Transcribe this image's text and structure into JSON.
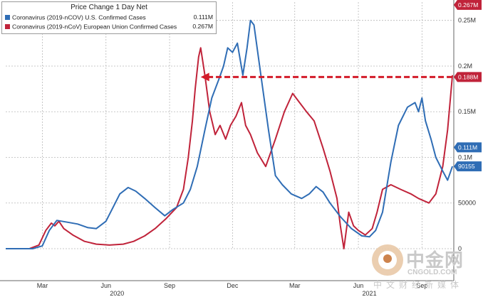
{
  "chart_data": {
    "type": "line",
    "title": "Price Change 1 Day Net",
    "x_ticks": [
      {
        "x": "2020-03-15",
        "label": "Mar"
      },
      {
        "x": "2020-06-15",
        "label": "Jun"
      },
      {
        "x": "2020-09-15",
        "label": "Sep"
      },
      {
        "x": "2020-12-15",
        "label": "Dec"
      },
      {
        "x": "2021-03-15",
        "label": "Mar"
      },
      {
        "x": "2021-06-15",
        "label": "Jun"
      },
      {
        "x": "2021-09-15",
        "label": "Sep"
      }
    ],
    "year_labels": [
      {
        "x": "2020-07-01",
        "label": "2020"
      },
      {
        "x": "2021-07-01",
        "label": "2021"
      }
    ],
    "y_ticks": [
      {
        "y": 0,
        "label": "0"
      },
      {
        "y": 50000,
        "label": "50000"
      },
      {
        "y": 100000,
        "label": "0.1M"
      },
      {
        "y": 150000,
        "label": "0.15M"
      },
      {
        "y": 200000,
        "label": "0.2M"
      },
      {
        "y": 250000,
        "label": "0.25M"
      }
    ],
    "xlim": [
      "2020-01-22",
      "2021-10-31"
    ],
    "ylim": [
      0,
      270000
    ],
    "grid": true,
    "legend_position": "top-left",
    "series": [
      {
        "name": "Coronavirus (2019-nCOV) U.S. Confirmed Cases",
        "color": "#2f6db5",
        "last_value_label": "0.111M",
        "points": [
          [
            "2020-01-22",
            0
          ],
          [
            "2020-03-01",
            0
          ],
          [
            "2020-03-15",
            3000
          ],
          [
            "2020-03-25",
            20000
          ],
          [
            "2020-04-05",
            31000
          ],
          [
            "2020-04-20",
            29000
          ],
          [
            "2020-05-05",
            27000
          ],
          [
            "2020-05-20",
            23000
          ],
          [
            "2020-06-01",
            22000
          ],
          [
            "2020-06-15",
            30000
          ],
          [
            "2020-06-25",
            45000
          ],
          [
            "2020-07-05",
            60000
          ],
          [
            "2020-07-17",
            67000
          ],
          [
            "2020-07-28",
            63000
          ],
          [
            "2020-08-10",
            55000
          ],
          [
            "2020-08-25",
            45000
          ],
          [
            "2020-09-08",
            36000
          ],
          [
            "2020-09-20",
            43000
          ],
          [
            "2020-10-05",
            50000
          ],
          [
            "2020-10-15",
            65000
          ],
          [
            "2020-10-25",
            90000
          ],
          [
            "2020-11-05",
            130000
          ],
          [
            "2020-11-15",
            165000
          ],
          [
            "2020-11-25",
            185000
          ],
          [
            "2020-12-02",
            200000
          ],
          [
            "2020-12-08",
            220000
          ],
          [
            "2020-12-15",
            215000
          ],
          [
            "2020-12-22",
            225000
          ],
          [
            "2020-12-30",
            190000
          ],
          [
            "2021-01-05",
            220000
          ],
          [
            "2021-01-10",
            250000
          ],
          [
            "2021-01-15",
            245000
          ],
          [
            "2021-01-25",
            190000
          ],
          [
            "2021-02-05",
            130000
          ],
          [
            "2021-02-15",
            80000
          ],
          [
            "2021-02-25",
            70000
          ],
          [
            "2021-03-10",
            60000
          ],
          [
            "2021-03-25",
            55000
          ],
          [
            "2021-04-05",
            60000
          ],
          [
            "2021-04-15",
            68000
          ],
          [
            "2021-04-25",
            62000
          ],
          [
            "2021-05-05",
            50000
          ],
          [
            "2021-05-20",
            35000
          ],
          [
            "2021-06-05",
            22000
          ],
          [
            "2021-06-20",
            14000
          ],
          [
            "2021-07-01",
            13000
          ],
          [
            "2021-07-10",
            20000
          ],
          [
            "2021-07-20",
            40000
          ],
          [
            "2021-08-01",
            95000
          ],
          [
            "2021-08-12",
            135000
          ],
          [
            "2021-08-25",
            155000
          ],
          [
            "2021-09-05",
            160000
          ],
          [
            "2021-09-10",
            150000
          ],
          [
            "2021-09-15",
            165000
          ],
          [
            "2021-09-20",
            140000
          ],
          [
            "2021-09-28",
            120000
          ],
          [
            "2021-10-05",
            100000
          ],
          [
            "2021-10-15",
            85000
          ],
          [
            "2021-10-22",
            75000
          ],
          [
            "2021-10-29",
            90155
          ]
        ]
      },
      {
        "name": "Coronavirus (2019-nCoV) European Union Confirmed Cases",
        "color": "#c0233a",
        "last_value_label": "0.267M",
        "points": [
          [
            "2020-01-22",
            0
          ],
          [
            "2020-02-25",
            0
          ],
          [
            "2020-03-10",
            4000
          ],
          [
            "2020-03-20",
            20000
          ],
          [
            "2020-03-28",
            28000
          ],
          [
            "2020-04-02",
            25000
          ],
          [
            "2020-04-08",
            30000
          ],
          [
            "2020-04-15",
            22000
          ],
          [
            "2020-04-28",
            15000
          ],
          [
            "2020-05-15",
            8000
          ],
          [
            "2020-06-01",
            5000
          ],
          [
            "2020-06-20",
            4000
          ],
          [
            "2020-07-10",
            5000
          ],
          [
            "2020-07-25",
            8000
          ],
          [
            "2020-08-10",
            14000
          ],
          [
            "2020-08-25",
            22000
          ],
          [
            "2020-09-10",
            33000
          ],
          [
            "2020-09-25",
            45000
          ],
          [
            "2020-10-05",
            65000
          ],
          [
            "2020-10-12",
            100000
          ],
          [
            "2020-10-18",
            140000
          ],
          [
            "2020-10-22",
            175000
          ],
          [
            "2020-10-27",
            210000
          ],
          [
            "2020-10-30",
            220000
          ],
          [
            "2020-11-05",
            190000
          ],
          [
            "2020-11-12",
            150000
          ],
          [
            "2020-11-20",
            125000
          ],
          [
            "2020-11-27",
            135000
          ],
          [
            "2020-12-05",
            120000
          ],
          [
            "2020-12-12",
            135000
          ],
          [
            "2020-12-20",
            145000
          ],
          [
            "2020-12-28",
            160000
          ],
          [
            "2021-01-03",
            135000
          ],
          [
            "2021-01-10",
            125000
          ],
          [
            "2021-01-20",
            105000
          ],
          [
            "2021-02-01",
            90000
          ],
          [
            "2021-02-15",
            120000
          ],
          [
            "2021-02-28",
            150000
          ],
          [
            "2021-03-12",
            170000
          ],
          [
            "2021-03-22",
            160000
          ],
          [
            "2021-04-01",
            150000
          ],
          [
            "2021-04-12",
            140000
          ],
          [
            "2021-04-25",
            110000
          ],
          [
            "2021-05-05",
            85000
          ],
          [
            "2021-05-15",
            55000
          ],
          [
            "2021-05-20",
            25000
          ],
          [
            "2021-05-25",
            0
          ],
          [
            "2021-06-01",
            40000
          ],
          [
            "2021-06-08",
            25000
          ],
          [
            "2021-06-15",
            20000
          ],
          [
            "2021-06-25",
            15000
          ],
          [
            "2021-07-05",
            22000
          ],
          [
            "2021-07-12",
            40000
          ],
          [
            "2021-07-20",
            65000
          ],
          [
            "2021-08-01",
            70000
          ],
          [
            "2021-08-15",
            65000
          ],
          [
            "2021-08-30",
            60000
          ],
          [
            "2021-09-10",
            55000
          ],
          [
            "2021-09-25",
            50000
          ],
          [
            "2021-10-05",
            60000
          ],
          [
            "2021-10-15",
            90000
          ],
          [
            "2021-10-22",
            130000
          ],
          [
            "2021-10-29",
            190000
          ]
        ]
      }
    ],
    "value_tags": [
      {
        "label": "0.267M",
        "value": 267000,
        "color": "#c0233a"
      },
      {
        "label": "0.188M",
        "value": 188000,
        "color": "#c0233a"
      },
      {
        "label": "0.111M",
        "value": 111000,
        "color": "#2f6db5"
      },
      {
        "label": "90155",
        "value": 90155,
        "color": "#2f6db5"
      }
    ],
    "annotation": {
      "type": "dashed-arrow",
      "color": "#d31c2a",
      "value": 188000,
      "from_x": "2021-10-29",
      "to_x": "2020-10-30"
    }
  },
  "watermark": {
    "brand": "中金网",
    "url": "CNGOLD.COM",
    "subtitle": "中文财经新媒体"
  }
}
